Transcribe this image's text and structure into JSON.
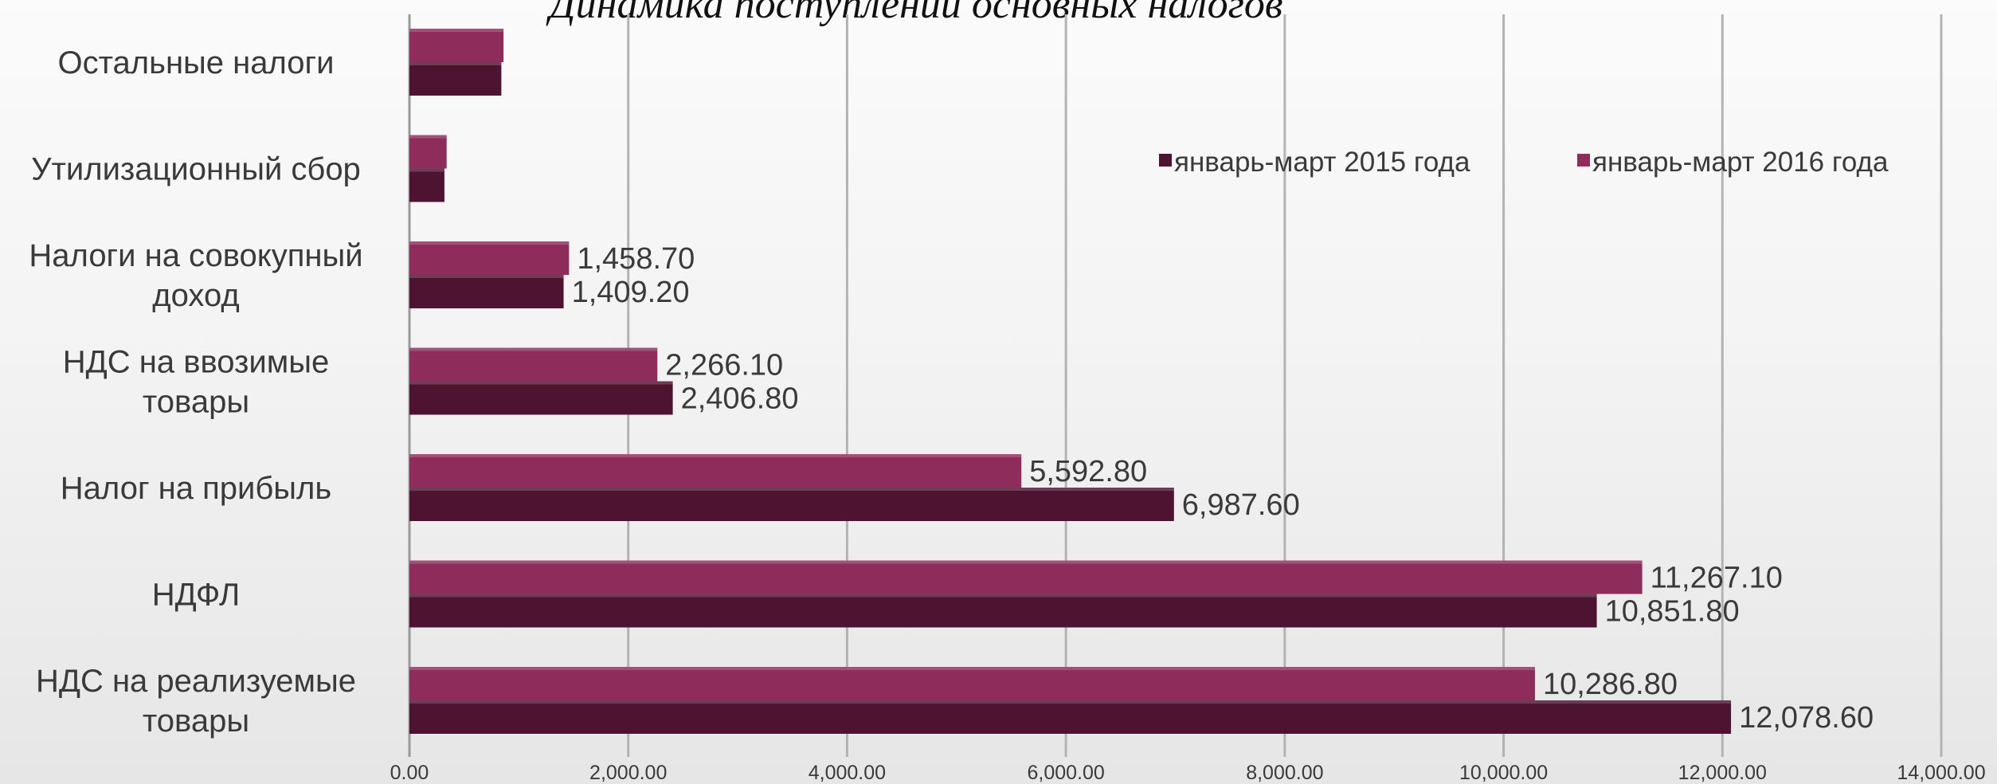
{
  "chart_data": {
    "type": "bar",
    "orientation": "horizontal",
    "title": "Динамика поступлений основных налогов",
    "categories": [
      "Остальные налоги",
      "Утилизационный сбор",
      "Налоги на совокупный доход",
      "НДС на ввозимые товары",
      "Налог на прибыль",
      "НДФЛ",
      "НДС на реализуемые товары"
    ],
    "category_lines": [
      [
        "Остальные налоги"
      ],
      [
        "Утилизационный сбор"
      ],
      [
        "Налоги на совокупный",
        "доход"
      ],
      [
        "НДС на ввозимые",
        "товары"
      ],
      [
        "Налог на прибыль"
      ],
      [
        "НДФЛ"
      ],
      [
        "НДС на реализуемые",
        "товары"
      ]
    ],
    "series": [
      {
        "name": "январь-март 2016 года",
        "color": "#8e2d5b",
        "values": [
          860,
          340,
          1458.7,
          2266.1,
          5592.8,
          11267.1,
          10286.8
        ],
        "labels": [
          "",
          "",
          "1,458.70",
          "2,266.10",
          "5,592.80",
          "11,267.10",
          "10,286.80"
        ]
      },
      {
        "name": "январь-март 2015 года",
        "color": "#4d1330",
        "values": [
          840,
          320,
          1409.2,
          2406.8,
          6987.6,
          10851.8,
          12078.6
        ],
        "labels": [
          "",
          "",
          "1,409.20",
          "2,406.80",
          "6,987.60",
          "10,851.80",
          "12,078.60"
        ]
      }
    ],
    "legend": [
      {
        "label": "январь-март 2015 года",
        "color": "#4d1330"
      },
      {
        "label": "январь-март 2016 года",
        "color": "#8e2d5b"
      }
    ],
    "legend_position": "top-right",
    "xlim": [
      0,
      14000
    ],
    "x_ticks": [
      0,
      2000,
      4000,
      6000,
      8000,
      10000,
      12000,
      14000
    ],
    "x_tick_labels": [
      "0.00",
      "2,000.00",
      "4,000.00",
      "6,000.00",
      "8,000.00",
      "10,000.00",
      "12,000.00",
      "14,000.00"
    ],
    "grid": "vertical"
  }
}
